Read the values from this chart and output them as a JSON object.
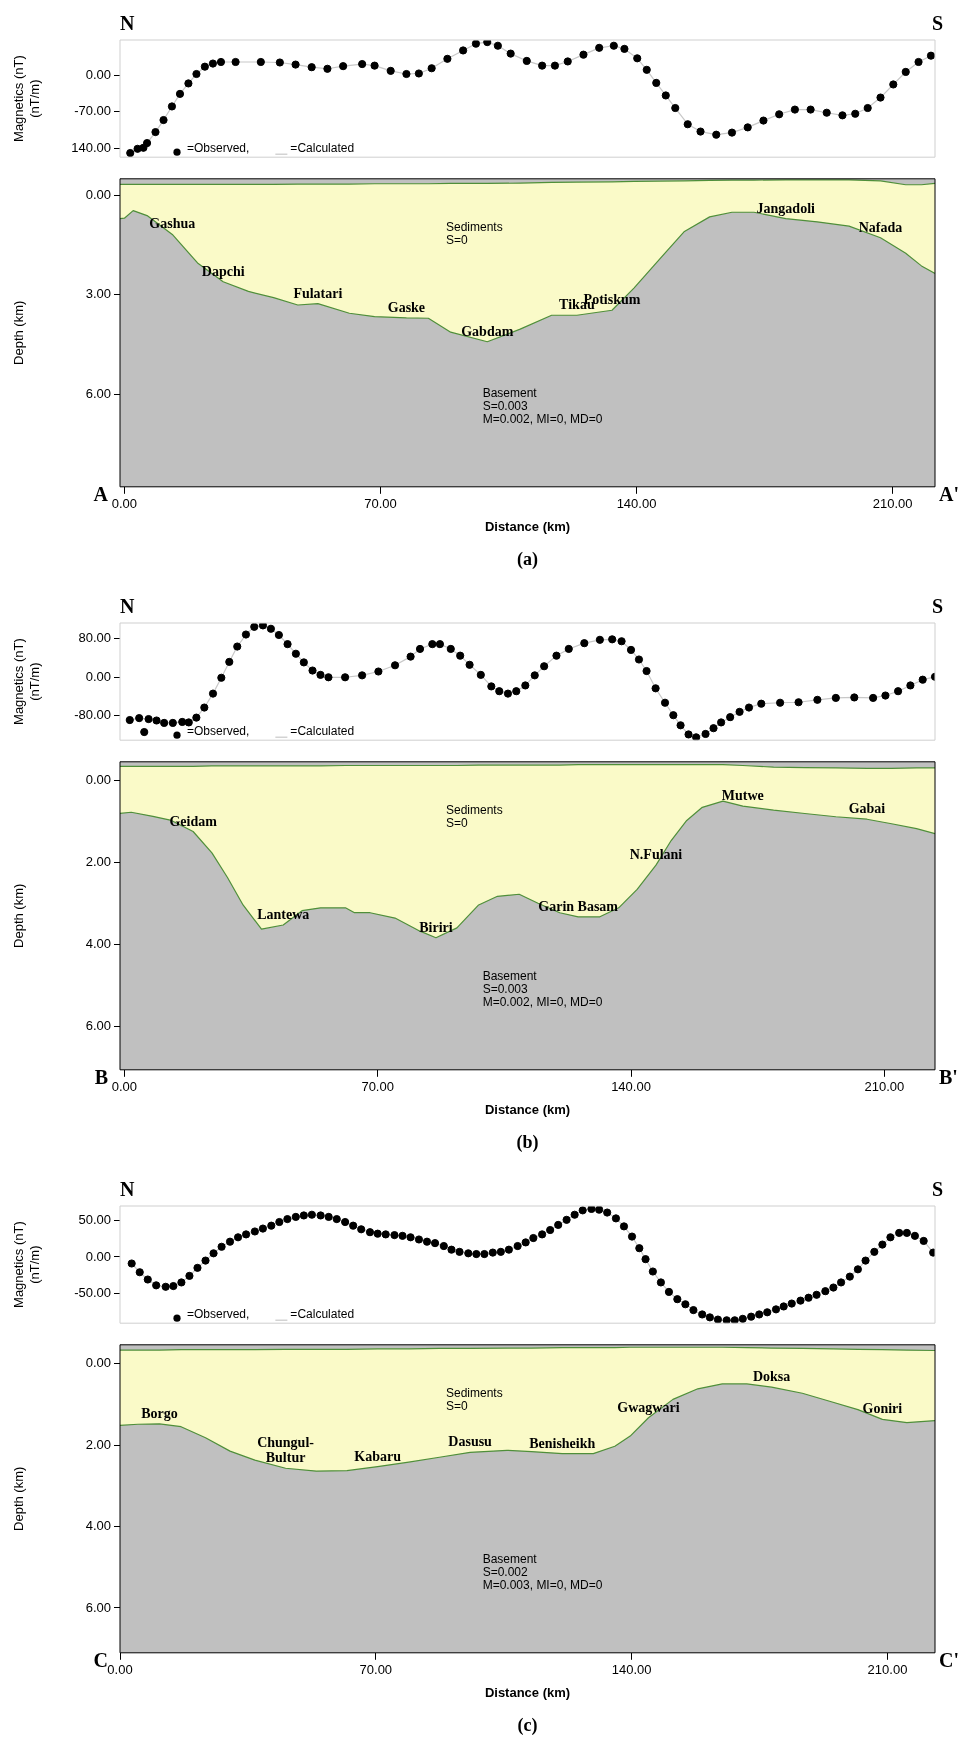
{
  "chart_data": [
    {
      "type": "scatter",
      "ylabel": "Magnetics (nT)\n(nT/m)",
      "xlim": [
        -1.2,
        221.6
      ],
      "ylim": [
        -157,
        67
      ],
      "yticks": [
        {
          "value": 0,
          "label": "0.00"
        },
        {
          "value": -70,
          "label": "-70.00"
        },
        {
          "value": -140,
          "label": "140.00"
        }
      ],
      "tick_labels": "y",
      "legend": "bottom left",
      "annotations": [
        "N",
        "S"
      ],
      "series": [
        {
          "name": "=Observed,",
          "type": "scatter",
          "marker": "circle",
          "color": "#000000",
          "x": [
            1.6,
            3.6,
            5.2,
            6.2,
            8.5,
            10.7,
            13,
            15.2,
            17.5,
            19.7,
            22,
            24.2,
            26.4,
            30.4,
            37.3,
            42.5,
            46.8,
            51.2,
            55.5,
            59.8,
            65,
            68.4,
            72.8,
            77.1,
            80.5,
            84,
            88.3,
            92.6,
            96.1,
            99.2,
            102.1,
            105.6,
            110,
            114.2,
            117.7,
            121.2,
            125.5,
            129.8,
            133.8,
            136.7,
            140.2,
            142.8,
            145.4,
            148,
            150.6,
            154,
            157.5,
            161.8,
            166.1,
            170.4,
            174.7,
            179,
            183.3,
            187.6,
            192,
            196.3,
            199.8,
            203.2,
            206.7,
            210.2,
            213.6,
            217.1,
            220.5
          ],
          "values": [
            -149,
            -141,
            -139,
            -130,
            -109,
            -86,
            -60,
            -36,
            -16,
            2,
            16,
            22,
            25,
            25,
            25,
            24,
            20,
            15,
            12,
            17,
            21,
            18,
            8,
            2,
            3,
            13,
            31,
            47,
            60,
            63,
            56,
            41,
            27,
            18,
            18,
            26,
            39,
            52,
            56,
            50,
            32,
            10,
            -15,
            -39,
            -63,
            -94,
            -108,
            -114,
            -110,
            -100,
            -87,
            -75,
            -66,
            -66,
            -72,
            -77,
            -74,
            -63,
            -43,
            -18,
            6,
            25,
            37
          ]
        },
        {
          "name": "=Calculated",
          "type": "line",
          "color": "#c8c8c8",
          "x": [
            1.6,
            3.6,
            5.2,
            6.2,
            8.5,
            10.7,
            13,
            15.2,
            17.5,
            19.7,
            22,
            24.2,
            26.4,
            30.4,
            37.3,
            42.5,
            46.8,
            51.2,
            55.5,
            59.8,
            65,
            68.4,
            72.8,
            77.1,
            80.5,
            84,
            88.3,
            92.6,
            96.1,
            99.2,
            102.1,
            105.6,
            110,
            114.2,
            117.7,
            121.2,
            125.5,
            129.8,
            133.8,
            136.7,
            140.2,
            142.8,
            145.4,
            148,
            150.6,
            154,
            157.5,
            161.8,
            166.1,
            170.4,
            174.7,
            179,
            183.3,
            187.6,
            192,
            196.3,
            199.8,
            203.2,
            206.7,
            210.2,
            213.6,
            217.1,
            220.5
          ],
          "values": [
            -149,
            -141,
            -139,
            -130,
            -109,
            -86,
            -60,
            -36,
            -16,
            2,
            16,
            22,
            25,
            25,
            25,
            24,
            20,
            15,
            12,
            17,
            21,
            18,
            8,
            2,
            3,
            13,
            31,
            47,
            60,
            63,
            56,
            41,
            27,
            18,
            18,
            26,
            39,
            52,
            56,
            50,
            32,
            10,
            -15,
            -39,
            -63,
            -94,
            -108,
            -114,
            -110,
            -100,
            -87,
            -75,
            -66,
            -66,
            -72,
            -77,
            -74,
            -63,
            -43,
            -18,
            6,
            25,
            37
          ]
        }
      ]
    },
    {
      "type": "line",
      "xlabel": "Distance (km)",
      "ylabel": "Depth (km)",
      "xlim": [
        -1.2,
        221.6
      ],
      "ylim": [
        8.8,
        -0.5
      ],
      "xticks": [
        {
          "value": 0,
          "label": "0.00"
        },
        {
          "value": 70,
          "label": "70.00"
        },
        {
          "value": 140,
          "label": "140.00"
        },
        {
          "value": 210,
          "label": "210.00"
        }
      ],
      "yticks": [
        {
          "value": 0,
          "label": "0.00"
        },
        {
          "value": 3,
          "label": "3.00"
        },
        {
          "value": 6,
          "label": "6.00"
        }
      ],
      "annotations": [
        "Sediments\nS=0",
        "Basement\nS=0.003\nM=0.002, MI=0, MD=0",
        "A",
        "A'",
        "(a)",
        {
          "text": "Gashua",
          "x": 13.1,
          "y": 1.18
        },
        {
          "text": "Dapchi",
          "x": 27,
          "y": 2.61
        },
        {
          "text": "Fulatari",
          "x": 52.9,
          "y": 3.27
        },
        {
          "text": "Gaske",
          "x": 77.1,
          "y": 3.7
        },
        {
          "text": "Gabdam",
          "x": 99.2,
          "y": 4.42
        },
        {
          "text": "Tikau",
          "x": 123.7,
          "y": 3.62
        },
        {
          "text": "Potiskum",
          "x": 133.3,
          "y": 3.47
        },
        {
          "text": "Jangadoli",
          "x": 180.8,
          "y": 0.7
        },
        {
          "text": "Nafada",
          "x": 206.7,
          "y": 1.28
        }
      ],
      "series": [
        {
          "type": "line",
          "color": "#4f8f3a",
          "x": [
            -1.2,
            0,
            2.4,
            6.2,
            13.1,
            20,
            27,
            33.9,
            40.8,
            47.4,
            52.9,
            61.5,
            68.4,
            77.1,
            83.1,
            89.2,
            99.2,
            108.2,
            116.8,
            123.7,
            133.3,
            139.3,
            146.2,
            153.1,
            160,
            166.1,
            172.1,
            180.8,
            189.4,
            198.1,
            206.7,
            213.6,
            217.9,
            221.6
          ],
          "values": [
            -0.33,
            -0.33,
            -0.33,
            -0.33,
            -0.33,
            -0.33,
            -0.33,
            -0.33,
            -0.33,
            -0.34,
            -0.34,
            -0.34,
            -0.35,
            -0.35,
            -0.35,
            -0.36,
            -0.36,
            -0.37,
            -0.39,
            -0.4,
            -0.41,
            -0.42,
            -0.43,
            -0.44,
            -0.45,
            -0.46,
            -0.46,
            -0.47,
            -0.47,
            -0.47,
            -0.44,
            -0.32,
            -0.32,
            -0.36
          ]
        },
        {
          "type": "line",
          "color": "#4f8f3a",
          "x": [
            -1.2,
            0,
            2.4,
            6.2,
            13.1,
            20,
            27,
            33.9,
            40.8,
            47.4,
            52.9,
            61.5,
            68.4,
            77.1,
            83.1,
            89.2,
            99.2,
            108.2,
            116.8,
            123.7,
            133.3,
            139.3,
            146.2,
            153.1,
            160,
            166.1,
            172.1,
            180.8,
            189.4,
            198.1,
            206.7,
            213.6,
            217.9,
            221.6
          ],
          "values": [
            0.7,
            0.69,
            0.46,
            0.61,
            1.18,
            2.04,
            2.61,
            2.9,
            3.09,
            3.31,
            3.27,
            3.56,
            3.66,
            3.7,
            3.71,
            4.13,
            4.42,
            4.04,
            3.62,
            3.62,
            3.47,
            2.8,
            1.94,
            1.09,
            0.65,
            0.51,
            0.51,
            0.7,
            0.8,
            0.93,
            1.28,
            1.75,
            2.13,
            2.36
          ],
          "lower": [
            -0.33,
            -0.33,
            -0.33,
            -0.33,
            -0.33,
            -0.33,
            -0.33,
            -0.33,
            -0.33,
            -0.34,
            -0.34,
            -0.34,
            -0.35,
            -0.35,
            -0.35,
            -0.36,
            -0.36,
            -0.37,
            -0.39,
            -0.4,
            -0.41,
            -0.42,
            -0.43,
            -0.44,
            -0.45,
            -0.46,
            -0.46,
            -0.47,
            -0.47,
            -0.47,
            -0.44,
            -0.32,
            -0.32,
            -0.36
          ],
          "upper": [
            0.7,
            0.69,
            0.46,
            0.61,
            1.18,
            2.04,
            2.61,
            2.9,
            3.09,
            3.31,
            3.27,
            3.56,
            3.66,
            3.7,
            3.71,
            4.13,
            4.42,
            4.04,
            3.62,
            3.62,
            3.47,
            2.8,
            1.94,
            1.09,
            0.65,
            0.51,
            0.51,
            0.7,
            0.8,
            0.93,
            1.28,
            1.75,
            2.13,
            2.36
          ]
        }
      ]
    },
    {
      "type": "scatter",
      "ylabel": "Magnetics (nT)\n(nT/m)",
      "xlim": [
        -1.2,
        224
      ],
      "ylim": [
        -131,
        113
      ],
      "yticks": [
        {
          "value": 80,
          "label": "80.00"
        },
        {
          "value": 0,
          "label": "0.00"
        },
        {
          "value": -80,
          "label": "-80.00"
        }
      ],
      "tick_labels": "y",
      "legend": "bottom left",
      "annotations": [
        "N",
        "S"
      ],
      "series": [
        {
          "name": "=Observed,",
          "type": "scatter",
          "marker": "circle",
          "color": "#000000",
          "x": [
            1.5,
            4.1,
            5.5,
            6.7,
            8.9,
            11,
            13.4,
            16,
            17.8,
            19.9,
            22.1,
            24.5,
            26.8,
            29,
            31.2,
            33.6,
            35.9,
            38.3,
            40.5,
            42.7,
            45.1,
            47.4,
            49.6,
            52,
            54.2,
            56.4,
            61,
            65.7,
            70.2,
            74.8,
            79.1,
            81.7,
            85.1,
            87.2,
            90.2,
            92.8,
            95.4,
            98.5,
            101.4,
            103.6,
            106,
            108.3,
            110.8,
            113.4,
            116,
            119.4,
            122.8,
            127.1,
            131.4,
            134.8,
            137.4,
            140,
            142.2,
            144.3,
            146.8,
            149.4,
            151.7,
            153.7,
            155.9,
            158,
            160.6,
            162.8,
            164.9,
            167.4,
            170,
            172.6,
            176,
            181.2,
            186.3,
            191.5,
            196.6,
            201.7,
            206.9,
            210.3,
            213.8,
            217.2,
            220.6,
            224
          ],
          "values": [
            -89,
            -85,
            -114,
            -87,
            -90,
            -95,
            -95,
            -93,
            -94,
            -84,
            -63,
            -34,
            -1,
            32,
            64,
            89,
            105,
            108,
            101,
            88,
            69,
            49,
            31,
            14,
            5,
            0,
            0,
            4,
            12,
            25,
            43,
            59,
            69,
            69,
            59,
            45,
            26,
            5,
            -19,
            -29,
            -34,
            -29,
            -17,
            4,
            23,
            45,
            59,
            71,
            78,
            79,
            75,
            57,
            37,
            13,
            -23,
            -53,
            -79,
            -100,
            -119,
            -125,
            -118,
            -106,
            -94,
            -83,
            -72,
            -63,
            -55,
            -53,
            -52,
            -47,
            -43,
            -42,
            -43,
            -38,
            -29,
            -17,
            -5,
            1
          ]
        },
        {
          "name": "=Calculated",
          "type": "line",
          "color": "#c8c8c8",
          "x": [
            1.5,
            4.1,
            6.7,
            8.9,
            11,
            13.4,
            16,
            17.8,
            19.9,
            22.1,
            24.5,
            26.8,
            29,
            31.2,
            33.6,
            35.9,
            38.3,
            40.5,
            42.7,
            45.1,
            47.4,
            49.6,
            52,
            54.2,
            56.4,
            61,
            65.7,
            70.2,
            74.8,
            79.1,
            81.7,
            85.1,
            87.2,
            90.2,
            92.8,
            95.4,
            98.5,
            101.4,
            103.6,
            106,
            108.3,
            110.8,
            113.4,
            116,
            119.4,
            122.8,
            127.1,
            131.4,
            134.8,
            137.4,
            140,
            142.2,
            144.3,
            146.8,
            149.4,
            151.7,
            153.7,
            155.9,
            158,
            160.6,
            162.8,
            164.9,
            167.4,
            170,
            172.6,
            176,
            181.2,
            186.3,
            191.5,
            196.6,
            201.7,
            206.9,
            210.3,
            213.8,
            217.2,
            220.6,
            224
          ],
          "values": [
            -89,
            -85,
            -87,
            -90,
            -95,
            -95,
            -93,
            -94,
            -84,
            -63,
            -34,
            -1,
            32,
            64,
            89,
            105,
            108,
            101,
            88,
            69,
            49,
            31,
            14,
            5,
            0,
            0,
            4,
            12,
            25,
            43,
            59,
            69,
            69,
            59,
            45,
            26,
            5,
            -19,
            -29,
            -34,
            -29,
            -17,
            4,
            23,
            45,
            59,
            71,
            78,
            79,
            75,
            57,
            37,
            13,
            -23,
            -53,
            -79,
            -100,
            -119,
            -125,
            -118,
            -106,
            -94,
            -83,
            -72,
            -63,
            -55,
            -53,
            -52,
            -47,
            -43,
            -42,
            -43,
            -38,
            -29,
            -17,
            -5,
            1
          ]
        }
      ]
    },
    {
      "type": "line",
      "xlabel": "Distance (km)",
      "ylabel": "Depth (km)",
      "xlim": [
        -1.2,
        224
      ],
      "ylim": [
        7.05,
        -0.46
      ],
      "xticks": [
        {
          "value": 0,
          "label": "0.00"
        },
        {
          "value": 70,
          "label": "70.00"
        },
        {
          "value": 140,
          "label": "140.00"
        },
        {
          "value": 210,
          "label": "210.00"
        }
      ],
      "yticks": [
        {
          "value": 0,
          "label": "0.00"
        },
        {
          "value": 2,
          "label": "2.00"
        },
        {
          "value": 4,
          "label": "4.00"
        },
        {
          "value": 6,
          "label": "6.00"
        }
      ],
      "annotations": [
        "Sediments\nS=0",
        "Basement\nS=0.003\nM=0.002, MI=0, MD=0",
        "B",
        "B'",
        "(b)",
        {
          "text": "Geidam",
          "x": 19,
          "y": 1.24
        },
        {
          "text": "Lantewa",
          "x": 43.9,
          "y": 3.52
        },
        {
          "text": "Biriri",
          "x": 86.1,
          "y": 3.83
        },
        {
          "text": "Garin Basam",
          "x": 125.4,
          "y": 3.32
        },
        {
          "text": "N.Fulani",
          "x": 146.9,
          "y": 2.06
        },
        {
          "text": "Mutwe",
          "x": 170.9,
          "y": 0.62
        },
        {
          "text": "Gabai",
          "x": 205.2,
          "y": 0.94
        }
      ],
      "series": [
        {
          "type": "line",
          "color": "#4f8f3a",
          "x": [
            -1.2,
            1.9,
            7.9,
            13,
            19,
            24.2,
            28.5,
            32.8,
            37.9,
            43.9,
            49.1,
            54.2,
            61.1,
            63.6,
            67.9,
            74.8,
            81.7,
            86.1,
            91.9,
            97.9,
            103.1,
            109.1,
            114.3,
            120.3,
            125.4,
            131.4,
            136.6,
            141.7,
            146.9,
            151.1,
            155.4,
            159.7,
            165.4,
            170.9,
            179.4,
            188,
            196.6,
            205.2,
            212,
            218.9,
            224
          ],
          "values": [
            -0.35,
            -0.35,
            -0.35,
            -0.35,
            -0.35,
            -0.36,
            -0.36,
            -0.36,
            -0.36,
            -0.36,
            -0.36,
            -0.36,
            -0.37,
            -0.37,
            -0.37,
            -0.37,
            -0.37,
            -0.37,
            -0.37,
            -0.38,
            -0.38,
            -0.38,
            -0.38,
            -0.38,
            -0.39,
            -0.39,
            -0.39,
            -0.39,
            -0.39,
            -0.39,
            -0.39,
            -0.39,
            -0.39,
            -0.37,
            -0.33,
            -0.32,
            -0.31,
            -0.3,
            -0.3,
            -0.31,
            -0.31
          ]
        },
        {
          "type": "line",
          "color": "#4f8f3a",
          "x": [
            -1.2,
            1.9,
            7.9,
            13,
            19,
            24.2,
            28.5,
            32.8,
            37.9,
            43.9,
            49.1,
            54.2,
            61.1,
            63.6,
            67.9,
            74.8,
            81.7,
            86.1,
            91.9,
            97.9,
            103.1,
            109.1,
            114.3,
            120.3,
            125.4,
            131.4,
            136.6,
            141.7,
            146.9,
            151.1,
            155.4,
            159.7,
            165.4,
            170.9,
            179.4,
            188,
            196.6,
            205.2,
            212,
            218.9,
            224
          ],
          "values": [
            0.8,
            0.77,
            0.87,
            0.97,
            1.24,
            1.76,
            2.36,
            3.03,
            3.62,
            3.52,
            3.17,
            3.1,
            3.1,
            3.22,
            3.22,
            3.35,
            3.67,
            3.83,
            3.59,
            3.03,
            2.82,
            2.77,
            2.99,
            3.22,
            3.32,
            3.32,
            3.1,
            2.65,
            2.06,
            1.46,
            0.97,
            0.65,
            0.5,
            0.62,
            0.72,
            0.8,
            0.88,
            0.94,
            1.05,
            1.17,
            1.29
          ],
          "lower": [
            -0.35,
            -0.35,
            -0.35,
            -0.35,
            -0.35,
            -0.36,
            -0.36,
            -0.36,
            -0.36,
            -0.36,
            -0.36,
            -0.36,
            -0.37,
            -0.37,
            -0.37,
            -0.37,
            -0.37,
            -0.37,
            -0.37,
            -0.38,
            -0.38,
            -0.38,
            -0.38,
            -0.38,
            -0.39,
            -0.39,
            -0.39,
            -0.39,
            -0.39,
            -0.39,
            -0.39,
            -0.39,
            -0.39,
            -0.37,
            -0.33,
            -0.32,
            -0.31,
            -0.3,
            -0.3,
            -0.31,
            -0.31
          ],
          "upper": [
            0.8,
            0.77,
            0.87,
            0.97,
            1.24,
            1.76,
            2.36,
            3.03,
            3.62,
            3.52,
            3.17,
            3.1,
            3.1,
            3.22,
            3.22,
            3.35,
            3.67,
            3.83,
            3.59,
            3.03,
            2.82,
            2.77,
            2.99,
            3.22,
            3.32,
            3.32,
            3.1,
            2.65,
            2.06,
            1.46,
            0.97,
            0.65,
            0.5,
            0.62,
            0.72,
            0.8,
            0.88,
            0.94,
            1.05,
            1.17,
            1.29
          ]
        }
      ]
    },
    {
      "type": "scatter",
      "ylabel": "Magnetics (nT)\n(nT/m)",
      "xlim": [
        0,
        223
      ],
      "ylim": [
        -91,
        70
      ],
      "yticks": [
        {
          "value": 50,
          "label": "50.00"
        },
        {
          "value": 0,
          "label": "0.00"
        },
        {
          "value": -50,
          "label": "-50.00"
        }
      ],
      "tick_labels": "y",
      "legend": "bottom left",
      "annotations": [
        "N",
        "S"
      ],
      "series": [
        {
          "name": "=Observed,",
          "type": "scatter",
          "marker": "circle",
          "color": "#000000",
          "x": [
            3.2,
            5.4,
            7.6,
            9.9,
            12.5,
            14.6,
            16.8,
            19,
            21.2,
            23.4,
            25.6,
            27.8,
            30.1,
            32.3,
            34.5,
            36.9,
            39.1,
            41.4,
            43.6,
            45.8,
            48.1,
            50.3,
            52.5,
            54.9,
            57.1,
            59.3,
            61.6,
            63.8,
            66,
            68.4,
            70.5,
            72.7,
            75.1,
            77.3,
            79.5,
            81.8,
            84,
            86.2,
            88.6,
            90.7,
            92.9,
            95.3,
            97.5,
            99.7,
            102,
            104.2,
            106.4,
            108.8,
            111,
            113.1,
            115.5,
            117.7,
            119.9,
            122.2,
            124.4,
            126.6,
            129,
            131.1,
            133.3,
            135.7,
            137.9,
            140.1,
            142.1,
            143.8,
            145.8,
            148,
            150.2,
            152.5,
            154.7,
            156.9,
            159.3,
            161.4,
            163.6,
            166,
            168.2,
            170.4,
            172.7,
            174.9,
            177.1,
            179.5,
            181.6,
            183.8,
            186.2,
            188.4,
            190.6,
            193,
            195.2,
            197.3,
            199.7,
            201.9,
            204,
            206.4,
            208.6,
            210.8,
            213.2,
            215.3,
            217.5,
            219.9,
            222.5
          ],
          "values": [
            -9,
            -21,
            -31,
            -39,
            -41,
            -40,
            -35,
            -26,
            -15,
            -5,
            5,
            14,
            21,
            27,
            31,
            35,
            39,
            43,
            48,
            52,
            55,
            57,
            58,
            57,
            55,
            52,
            48,
            43,
            38,
            34,
            32,
            31,
            30,
            29,
            27,
            24,
            21,
            19,
            15,
            10,
            7,
            5,
            4,
            4,
            6,
            7,
            10,
            15,
            20,
            26,
            31,
            37,
            44,
            51,
            58,
            64,
            66,
            65,
            61,
            53,
            42,
            28,
            12,
            -3,
            -20,
            -35,
            -48,
            -58,
            -65,
            -73,
            -79,
            -83,
            -86,
            -87,
            -87,
            -85,
            -82,
            -79,
            -76,
            -72,
            -68,
            -64,
            -60,
            -56,
            -52,
            -47,
            -42,
            -35,
            -27,
            -17,
            -5,
            7,
            17,
            27,
            33,
            33,
            29,
            22,
            6
          ]
        },
        {
          "name": "=Calculated",
          "type": "line",
          "color": "#c8c8c8",
          "x": [
            3.2,
            5.4,
            7.6,
            9.9,
            12.5,
            14.6,
            16.8,
            19,
            21.2,
            23.4,
            25.6,
            27.8,
            30.1,
            32.3,
            34.5,
            36.9,
            39.1,
            41.4,
            43.6,
            45.8,
            48.1,
            50.3,
            52.5,
            54.9,
            57.1,
            59.3,
            61.6,
            63.8,
            66,
            68.4,
            70.5,
            72.7,
            75.1,
            77.3,
            79.5,
            81.8,
            84,
            86.2,
            88.6,
            90.7,
            92.9,
            95.3,
            97.5,
            99.7,
            102,
            104.2,
            106.4,
            108.8,
            111,
            113.1,
            115.5,
            117.7,
            119.9,
            122.2,
            124.4,
            126.6,
            129,
            131.1,
            133.3,
            135.7,
            137.9,
            140.1,
            142.1,
            143.8,
            145.8,
            148,
            150.2,
            152.5,
            154.7,
            156.9,
            159.3,
            161.4,
            163.6,
            166,
            168.2,
            170.4,
            172.7,
            174.9,
            177.1,
            179.5,
            181.6,
            183.8,
            186.2,
            188.4,
            190.6,
            193,
            195.2,
            197.3,
            199.7,
            201.9,
            204,
            206.4,
            208.6,
            210.8,
            213.2,
            215.3,
            217.5,
            219.9,
            222.5
          ],
          "values": [
            -9,
            -21,
            -31,
            -39,
            -41,
            -40,
            -35,
            -26,
            -15,
            -5,
            5,
            14,
            21,
            27,
            31,
            35,
            39,
            43,
            48,
            52,
            55,
            57,
            58,
            57,
            55,
            52,
            48,
            43,
            38,
            34,
            32,
            31,
            30,
            29,
            27,
            24,
            21,
            19,
            15,
            10,
            7,
            5,
            4,
            4,
            6,
            7,
            10,
            15,
            20,
            26,
            31,
            37,
            44,
            51,
            58,
            64,
            66,
            65,
            61,
            53,
            42,
            28,
            12,
            -3,
            -20,
            -35,
            -48,
            -58,
            -65,
            -73,
            -79,
            -83,
            -86,
            -87,
            -87,
            -85,
            -82,
            -79,
            -76,
            -72,
            -68,
            -64,
            -60,
            -56,
            -52,
            -47,
            -42,
            -35,
            -27,
            -17,
            -5,
            7,
            17,
            27,
            33,
            33,
            29,
            22,
            6
          ]
        }
      ]
    },
    {
      "type": "line",
      "xlabel": "Distance (km)",
      "ylabel": "Depth (km)",
      "xlim": [
        0,
        223
      ],
      "ylim": [
        7.1,
        -0.46
      ],
      "xticks": [
        {
          "value": 0,
          "label": "0.00"
        },
        {
          "value": 70,
          "label": "70.00"
        },
        {
          "value": 140,
          "label": "140.00"
        },
        {
          "value": 210,
          "label": "210.00"
        }
      ],
      "yticks": [
        {
          "value": 0,
          "label": "0.00"
        },
        {
          "value": 2,
          "label": "2.00"
        },
        {
          "value": 4,
          "label": "4.00"
        },
        {
          "value": 6,
          "label": "6.00"
        }
      ],
      "annotations": [
        "Sediments\nS=0",
        "Basement\nS=0.002\nM=0.003, MI=0, MD=0",
        "C",
        "C'",
        "(c)",
        {
          "text": "Borgo",
          "x": 10.8,
          "y": 1.48
        },
        {
          "text": "Chungul-\nBultur",
          "x": 45.3,
          "y": 2.57
        },
        {
          "text": "Kabaru",
          "x": 70.5,
          "y": 2.53
        },
        {
          "text": "Dasusu",
          "x": 95.8,
          "y": 2.18
        },
        {
          "text": "Benisheikh",
          "x": 121,
          "y": 2.21
        },
        {
          "text": "Gwagwari",
          "x": 144.6,
          "y": 1.33
        },
        {
          "text": "Doksa",
          "x": 178.3,
          "y": 0.58
        },
        {
          "text": "Goniri",
          "x": 208.6,
          "y": 1.37
        }
      ],
      "series": [
        {
          "type": "line",
          "color": "#4f8f3a",
          "x": [
            0,
            4.9,
            10.8,
            16.7,
            23.4,
            30.1,
            36.9,
            45.3,
            53.7,
            62.1,
            70.5,
            79,
            87.4,
            95.8,
            105.9,
            112.6,
            121,
            129.5,
            135.4,
            139.6,
            144.6,
            151.3,
            158.1,
            164.8,
            171.5,
            178.3,
            186.7,
            195.1,
            201.9,
            208.6,
            215.3,
            223
          ],
          "values": [
            -0.33,
            -0.33,
            -0.33,
            -0.34,
            -0.34,
            -0.34,
            -0.34,
            -0.35,
            -0.35,
            -0.35,
            -0.36,
            -0.36,
            -0.37,
            -0.37,
            -0.38,
            -0.38,
            -0.39,
            -0.39,
            -0.39,
            -0.4,
            -0.4,
            -0.4,
            -0.4,
            -0.4,
            -0.39,
            -0.38,
            -0.37,
            -0.36,
            -0.35,
            -0.34,
            -0.33,
            -0.32
          ]
        },
        {
          "type": "line",
          "color": "#4f8f3a",
          "x": [
            0,
            4.9,
            10.8,
            16.7,
            23.4,
            30.1,
            36.9,
            45.3,
            53.7,
            62.1,
            70.5,
            79,
            87.4,
            95.8,
            105.9,
            112.6,
            121,
            129.5,
            135.4,
            139.6,
            144.6,
            151.3,
            158.1,
            164.8,
            171.5,
            178.3,
            186.7,
            195.1,
            201.9,
            208.6,
            215.3,
            223
          ],
          "values": [
            1.52,
            1.49,
            1.48,
            1.55,
            1.82,
            2.15,
            2.37,
            2.57,
            2.64,
            2.63,
            2.53,
            2.42,
            2.3,
            2.18,
            2.13,
            2.16,
            2.21,
            2.21,
            2.03,
            1.78,
            1.33,
            0.88,
            0.62,
            0.5,
            0.5,
            0.58,
            0.73,
            0.95,
            1.13,
            1.37,
            1.45,
            1.4
          ],
          "lower": [
            -0.33,
            -0.33,
            -0.33,
            -0.34,
            -0.34,
            -0.34,
            -0.34,
            -0.35,
            -0.35,
            -0.35,
            -0.36,
            -0.36,
            -0.37,
            -0.37,
            -0.38,
            -0.38,
            -0.39,
            -0.39,
            -0.39,
            -0.4,
            -0.4,
            -0.4,
            -0.4,
            -0.4,
            -0.39,
            -0.38,
            -0.37,
            -0.36,
            -0.35,
            -0.34,
            -0.33,
            -0.32
          ],
          "upper": [
            1.52,
            1.49,
            1.48,
            1.55,
            1.82,
            2.15,
            2.37,
            2.57,
            2.64,
            2.63,
            2.53,
            2.42,
            2.3,
            2.18,
            2.13,
            2.16,
            2.21,
            2.21,
            2.03,
            1.78,
            1.33,
            0.88,
            0.62,
            0.5,
            0.5,
            0.58,
            0.73,
            0.95,
            1.13,
            1.37,
            1.45,
            1.4
          ]
        }
      ]
    }
  ]
}
